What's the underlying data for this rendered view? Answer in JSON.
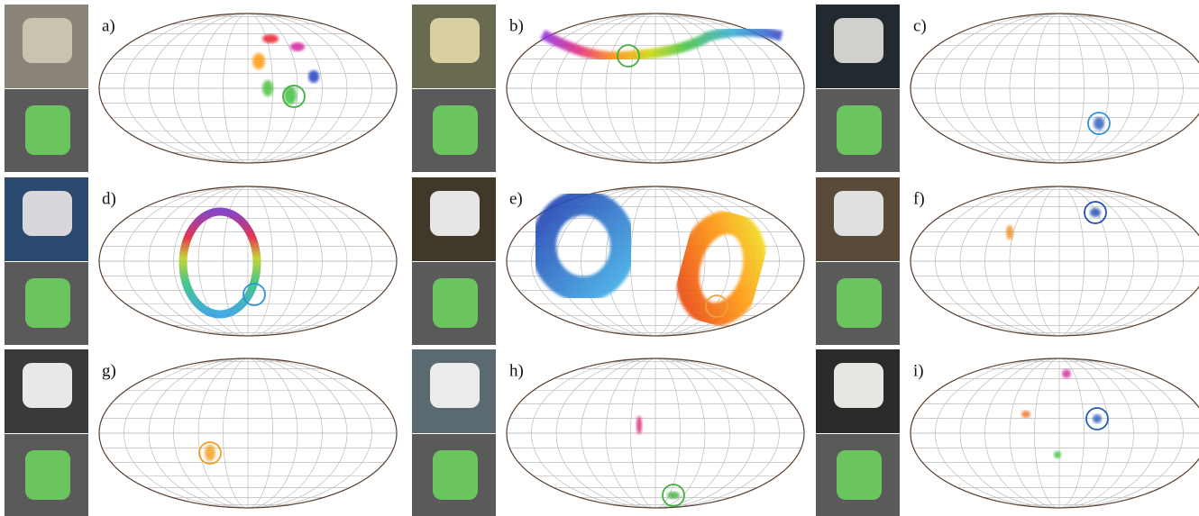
{
  "panels": [
    {
      "label": "a)"
    },
    {
      "label": "b)"
    },
    {
      "label": "c)"
    },
    {
      "label": "d)"
    },
    {
      "label": "e)"
    },
    {
      "label": "f)"
    },
    {
      "label": "g)"
    },
    {
      "label": "h)"
    },
    {
      "label": "i)"
    }
  ]
}
